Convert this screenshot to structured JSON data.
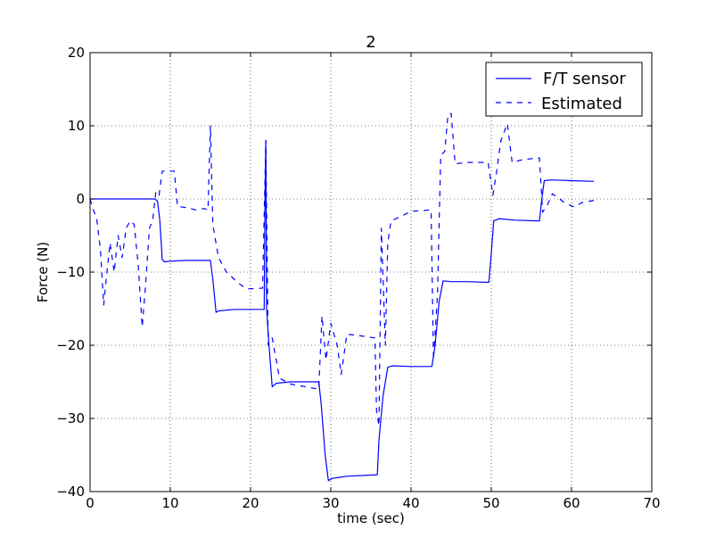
{
  "chart_data": {
    "type": "line",
    "title": "2",
    "xlabel": "time (sec)",
    "ylabel": "Force (N)",
    "xlim": [
      0,
      70
    ],
    "ylim": [
      -40,
      20
    ],
    "xticks": [
      0,
      10,
      20,
      30,
      40,
      50,
      60,
      70
    ],
    "yticks": [
      20,
      10,
      0,
      -10,
      -20,
      -30,
      -40
    ],
    "xtick_labels": [
      "0",
      "10",
      "20",
      "30",
      "40",
      "50",
      "60",
      "70"
    ],
    "ytick_labels": [
      "20",
      "10",
      "0",
      "−10",
      "−20",
      "−30",
      "−40"
    ],
    "grid": true,
    "legend_position": "top-right",
    "colors": {
      "series": "#0000ff"
    },
    "series": [
      {
        "name": "F/T sensor",
        "style": "solid",
        "points": [
          [
            0,
            0
          ],
          [
            8.1,
            0
          ],
          [
            8.4,
            -0.3
          ],
          [
            8.7,
            -3
          ],
          [
            9.0,
            -8.3
          ],
          [
            9.3,
            -8.6
          ],
          [
            10,
            -8.5
          ],
          [
            12,
            -8.4
          ],
          [
            15.0,
            -8.4
          ],
          [
            15.3,
            -11
          ],
          [
            15.7,
            -15.5
          ],
          [
            16,
            -15.3
          ],
          [
            18,
            -15.1
          ],
          [
            21.7,
            -15.1
          ],
          [
            21.8,
            0
          ],
          [
            21.9,
            8
          ],
          [
            22.0,
            -15
          ],
          [
            22.3,
            -20
          ],
          [
            22.7,
            -25.7
          ],
          [
            23.2,
            -25.2
          ],
          [
            25,
            -25
          ],
          [
            28.5,
            -25
          ],
          [
            28.8,
            -28
          ],
          [
            29.3,
            -35
          ],
          [
            29.7,
            -38.5
          ],
          [
            30.2,
            -38.2
          ],
          [
            32,
            -37.9
          ],
          [
            35.8,
            -37.7
          ],
          [
            36.0,
            -33
          ],
          [
            36.5,
            -27
          ],
          [
            37.1,
            -23
          ],
          [
            37.7,
            -22.8
          ],
          [
            40,
            -22.9
          ],
          [
            42.6,
            -22.9
          ],
          [
            43.0,
            -20
          ],
          [
            43.5,
            -14
          ],
          [
            44,
            -11.2
          ],
          [
            45,
            -11.3
          ],
          [
            47,
            -11.3
          ],
          [
            49.7,
            -11.4
          ],
          [
            50.0,
            -7.5
          ],
          [
            50.3,
            -3
          ],
          [
            51,
            -2.7
          ],
          [
            53,
            -2.9
          ],
          [
            56.0,
            -3.0
          ],
          [
            56.3,
            0
          ],
          [
            56.6,
            2.5
          ],
          [
            57.5,
            2.6
          ],
          [
            60,
            2.5
          ],
          [
            62.8,
            2.4
          ]
        ]
      },
      {
        "name": "Estimated",
        "style": "dashed",
        "points": [
          [
            0,
            0
          ],
          [
            0.4,
            -1.5
          ],
          [
            0.8,
            -2.5
          ],
          [
            1.3,
            -7
          ],
          [
            1.7,
            -14.5
          ],
          [
            2.1,
            -10
          ],
          [
            2.5,
            -6
          ],
          [
            3.0,
            -10
          ],
          [
            3.5,
            -5
          ],
          [
            4.0,
            -8
          ],
          [
            4.5,
            -4
          ],
          [
            5.0,
            -3
          ],
          [
            5.5,
            -3.5
          ],
          [
            6.0,
            -9
          ],
          [
            6.5,
            -17.5
          ],
          [
            6.9,
            -12
          ],
          [
            7.4,
            -4
          ],
          [
            7.8,
            -3
          ],
          [
            8.2,
            1
          ],
          [
            8.6,
            0.5
          ],
          [
            9.0,
            3.8
          ],
          [
            10.5,
            3.8
          ],
          [
            10.9,
            -1
          ],
          [
            12,
            -1.2
          ],
          [
            13.2,
            -1.5
          ],
          [
            14.2,
            -1.3
          ],
          [
            14.7,
            -1.5
          ],
          [
            15.0,
            10
          ],
          [
            15.3,
            -3.5
          ],
          [
            16,
            -8
          ],
          [
            17,
            -10
          ],
          [
            18.5,
            -11.5
          ],
          [
            19.5,
            -12.3
          ],
          [
            21.5,
            -12.2
          ],
          [
            21.9,
            8
          ],
          [
            22.2,
            -20
          ],
          [
            22.7,
            -19
          ],
          [
            23.2,
            -22
          ],
          [
            23.6,
            -24.5
          ],
          [
            25,
            -25.3
          ],
          [
            28.5,
            -26
          ],
          [
            28.9,
            -16
          ],
          [
            29.4,
            -22
          ],
          [
            30,
            -17
          ],
          [
            30.8,
            -20
          ],
          [
            31.3,
            -24
          ],
          [
            32,
            -18.5
          ],
          [
            33,
            -18.6
          ],
          [
            35.5,
            -19
          ],
          [
            35.7,
            -29
          ],
          [
            36.0,
            -31
          ],
          [
            36.3,
            -4
          ],
          [
            36.8,
            -20
          ],
          [
            37.1,
            -6
          ],
          [
            37.5,
            -3
          ],
          [
            38.5,
            -2.5
          ],
          [
            40,
            -1.7
          ],
          [
            42.5,
            -1.5
          ],
          [
            42.8,
            -22
          ],
          [
            43.3,
            -13
          ],
          [
            43.7,
            6
          ],
          [
            44.2,
            6.5
          ],
          [
            44.6,
            11.5
          ],
          [
            45.0,
            11.7
          ],
          [
            45.5,
            4.8
          ],
          [
            47,
            5
          ],
          [
            49.6,
            5
          ],
          [
            50.2,
            0.5
          ],
          [
            50.7,
            4
          ],
          [
            51.2,
            8
          ],
          [
            52,
            10.3
          ],
          [
            52.6,
            5
          ],
          [
            54,
            5.4
          ],
          [
            56.0,
            5.6
          ],
          [
            56.4,
            -1.8
          ],
          [
            57.0,
            -0.8
          ],
          [
            57.6,
            0.7
          ],
          [
            58.3,
            0.2
          ],
          [
            59.1,
            -0.5
          ],
          [
            60.3,
            -1.1
          ],
          [
            61.3,
            -0.5
          ],
          [
            62.8,
            -0.2
          ]
        ]
      }
    ]
  }
}
